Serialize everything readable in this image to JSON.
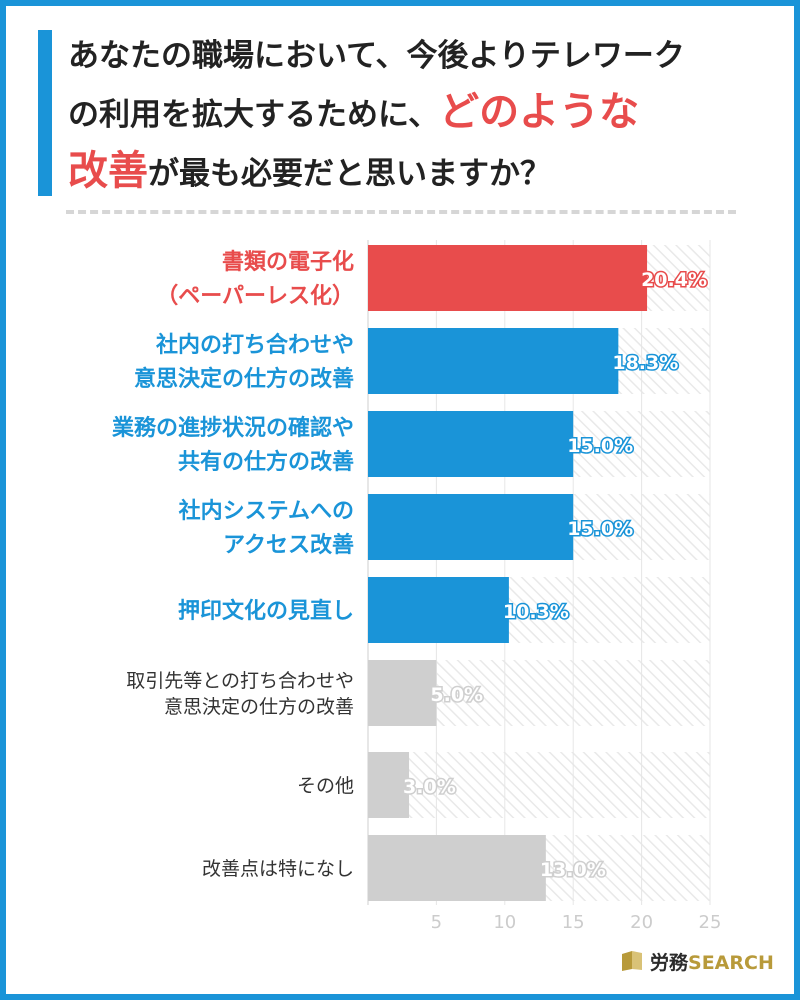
{
  "title": {
    "line1": "あなたの職場において、今後よりテレワーク",
    "line2_a": "の利用を拡大するために、",
    "line2_b": "どのような",
    "line3_a": "改善",
    "line3_b": "が最も必要だと思いますか？"
  },
  "brand": {
    "prefix": "労務",
    "suffix": "SEARCH"
  },
  "colors": {
    "red": "#e84c4c",
    "blue": "#1a94d8",
    "gray": "#cfcfcf",
    "frame": "#1a94d8",
    "gold": "#b89a3a"
  },
  "chart_data": {
    "type": "bar",
    "orientation": "horizontal",
    "categories": [
      [
        "書類の電子化",
        "（ペーパーレス化）"
      ],
      [
        "社内の打ち合わせや",
        "意思決定の仕方の改善"
      ],
      [
        "業務の進捗状況の確認や",
        "共有の仕方の改善"
      ],
      [
        "社内システムへの",
        "アクセス改善"
      ],
      [
        "押印文化の見直し"
      ],
      [
        "取引先等との打ち合わせや",
        "意思決定の仕方の改善"
      ],
      [
        "その他"
      ],
      [
        "改善点は特になし"
      ]
    ],
    "values": [
      20.4,
      18.3,
      15.0,
      15.0,
      10.3,
      5.0,
      3.0,
      13.0
    ],
    "value_labels": [
      "20.4%",
      "18.3%",
      "15.0%",
      "15.0%",
      "10.3%",
      "5.0%",
      "3.0%",
      "13.0%"
    ],
    "bar_colors": [
      "red",
      "blue",
      "blue",
      "blue",
      "blue",
      "gray",
      "gray",
      "gray"
    ],
    "xlim": [
      0,
      25
    ],
    "xticks": [
      5,
      10,
      15,
      20,
      25
    ],
    "xlabel": "",
    "ylabel": ""
  }
}
